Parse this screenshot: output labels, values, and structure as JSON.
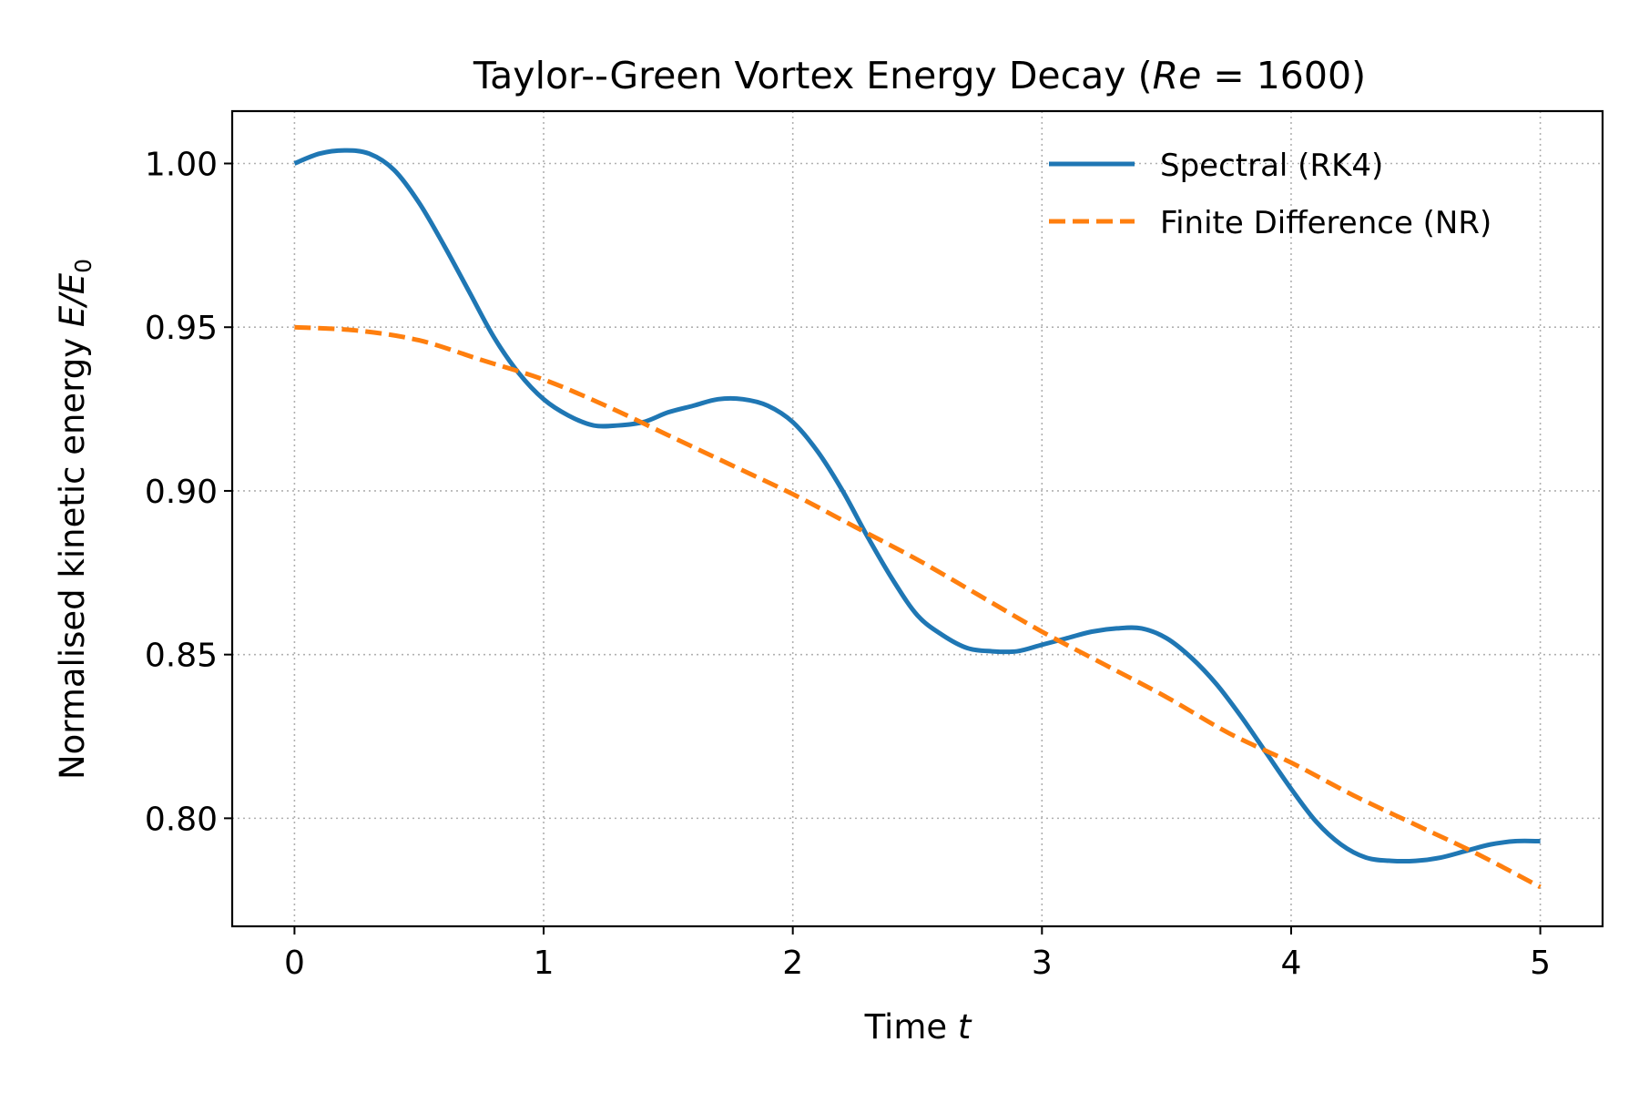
{
  "chart_data": {
    "type": "line",
    "title": "Taylor--Green Vortex Energy Decay (Re = 1600)",
    "title_parts": {
      "prefix": "Taylor--Green Vortex Energy Decay (",
      "re_symbol": "Re",
      "equals": " = 1600",
      "suffix": ")"
    },
    "xlabel": "Time t",
    "xlabel_parts": {
      "text": "Time ",
      "symbol": "t"
    },
    "ylabel": "Normalised kinetic energy E/E0",
    "ylabel_parts": {
      "text": "Normalised kinetic energy ",
      "symbol": "E/E",
      "subscript": "0"
    },
    "xlim": [
      -0.25,
      5.25
    ],
    "ylim": [
      0.767,
      1.016
    ],
    "xticks": [
      0,
      1,
      2,
      3,
      4,
      5
    ],
    "xtick_labels": [
      "0",
      "1",
      "2",
      "3",
      "4",
      "5"
    ],
    "yticks": [
      0.8,
      0.85,
      0.9,
      0.95,
      1.0
    ],
    "ytick_labels": [
      "0.80",
      "0.85",
      "0.90",
      "0.95",
      "1.00"
    ],
    "grid": true,
    "legend_position": "upper-right",
    "series": [
      {
        "name": "Spectral (RK4)",
        "color": "#1f77b4",
        "style": "solid",
        "x": [
          0,
          0.1,
          0.2,
          0.3,
          0.4,
          0.5,
          0.6,
          0.7,
          0.8,
          0.9,
          1.0,
          1.1,
          1.2,
          1.3,
          1.4,
          1.5,
          1.6,
          1.7,
          1.8,
          1.9,
          2.0,
          2.1,
          2.2,
          2.3,
          2.4,
          2.5,
          2.6,
          2.7,
          2.8,
          2.9,
          3.0,
          3.1,
          3.2,
          3.3,
          3.4,
          3.5,
          3.6,
          3.7,
          3.8,
          3.9,
          4.0,
          4.1,
          4.2,
          4.3,
          4.4,
          4.5,
          4.6,
          4.7,
          4.8,
          4.9,
          5.0
        ],
        "y": [
          1.0,
          1.003,
          1.004,
          1.003,
          0.998,
          0.988,
          0.975,
          0.961,
          0.947,
          0.936,
          0.928,
          0.923,
          0.92,
          0.92,
          0.921,
          0.924,
          0.926,
          0.928,
          0.928,
          0.926,
          0.921,
          0.912,
          0.9,
          0.886,
          0.873,
          0.862,
          0.856,
          0.852,
          0.851,
          0.851,
          0.853,
          0.855,
          0.857,
          0.858,
          0.858,
          0.855,
          0.849,
          0.841,
          0.831,
          0.82,
          0.809,
          0.799,
          0.792,
          0.788,
          0.787,
          0.787,
          0.788,
          0.79,
          0.792,
          0.793,
          0.793
        ]
      },
      {
        "name": "Finite Difference (NR)",
        "color": "#ff7f0e",
        "style": "dashed",
        "x": [
          0,
          0.25,
          0.5,
          0.75,
          1.0,
          1.25,
          1.5,
          1.75,
          2.0,
          2.25,
          2.5,
          2.75,
          3.0,
          3.25,
          3.5,
          3.75,
          4.0,
          4.25,
          4.5,
          4.75,
          5.0
        ],
        "y": [
          0.95,
          0.949,
          0.946,
          0.94,
          0.934,
          0.926,
          0.917,
          0.908,
          0.899,
          0.889,
          0.879,
          0.868,
          0.857,
          0.847,
          0.837,
          0.826,
          0.817,
          0.807,
          0.798,
          0.789,
          0.779
        ]
      }
    ]
  }
}
